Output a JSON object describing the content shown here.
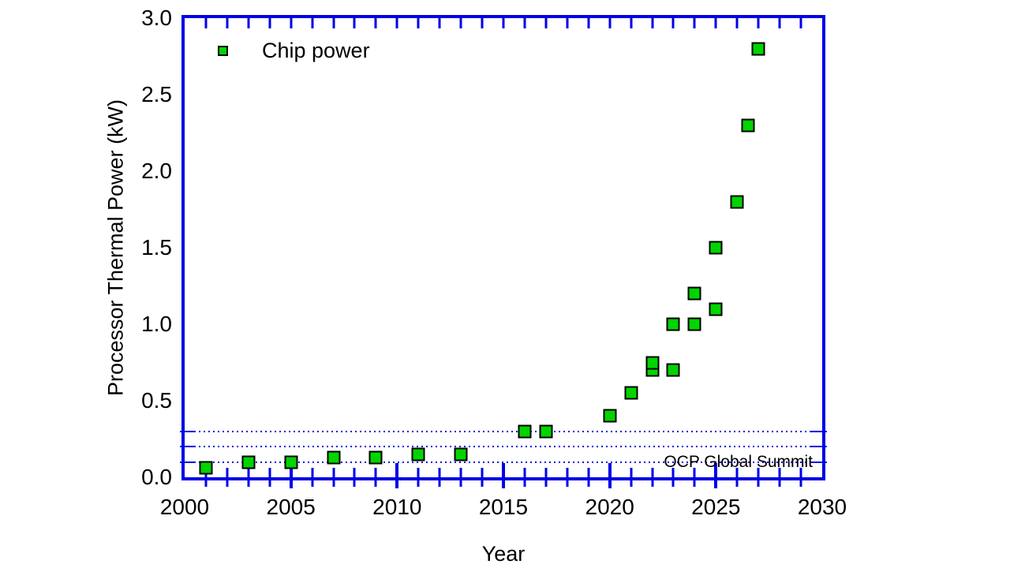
{
  "figure": {
    "background_color": "#ffffff",
    "axis_color": "#0000e6",
    "text_color": "#000000"
  },
  "chart_data": {
    "type": "scatter",
    "title": "",
    "xlabel": "Year",
    "ylabel": "Processor Thermal Power (kW)",
    "xlim": [
      2000,
      2030
    ],
    "ylim": [
      0.0,
      3.0
    ],
    "x_major_ticks": [
      2000,
      2005,
      2010,
      2015,
      2020,
      2025,
      2030
    ],
    "x_tick_labels": [
      "2000",
      "2005",
      "2010",
      "2015",
      "2020",
      "2025",
      "2030"
    ],
    "x_minor_tick_step": 1,
    "y_major_ticks": [
      0.0,
      0.5,
      1.0,
      1.5,
      2.0,
      2.5,
      3.0
    ],
    "y_tick_labels": [
      "0.0",
      "0.5",
      "1.0",
      "1.5",
      "2.0",
      "2.5",
      "3.0"
    ],
    "y_minor_tick_step": 0.1,
    "grid": {
      "y_major_style": "solid",
      "y_minor_style": "dotted",
      "x_grid": "off"
    },
    "legend": {
      "position": "top-left-inside",
      "entries": [
        {
          "label": "Chip power",
          "marker": "square",
          "marker_fill": "#00d500",
          "marker_edge": "#000000"
        }
      ]
    },
    "annotations": [
      {
        "text": "OCP Global Summit",
        "position": "bottom-right-inside"
      }
    ],
    "series": [
      {
        "name": "Chip power",
        "marker": "square",
        "marker_fill": "#00d500",
        "marker_edge": "#000000",
        "points": [
          [
            2001,
            0.06
          ],
          [
            2003,
            0.1
          ],
          [
            2005,
            0.1
          ],
          [
            2007,
            0.13
          ],
          [
            2009,
            0.13
          ],
          [
            2011,
            0.15
          ],
          [
            2013,
            0.15
          ],
          [
            2016,
            0.3
          ],
          [
            2017,
            0.3
          ],
          [
            2020,
            0.4
          ],
          [
            2021,
            0.55
          ],
          [
            2022,
            0.7
          ],
          [
            2022,
            0.75
          ],
          [
            2023,
            0.7
          ],
          [
            2023,
            1.0
          ],
          [
            2024,
            1.0
          ],
          [
            2024,
            1.2
          ],
          [
            2025,
            1.1
          ],
          [
            2025,
            1.5
          ],
          [
            2026,
            1.8
          ],
          [
            2026.5,
            2.3
          ],
          [
            2027,
            2.8
          ]
        ]
      }
    ]
  }
}
